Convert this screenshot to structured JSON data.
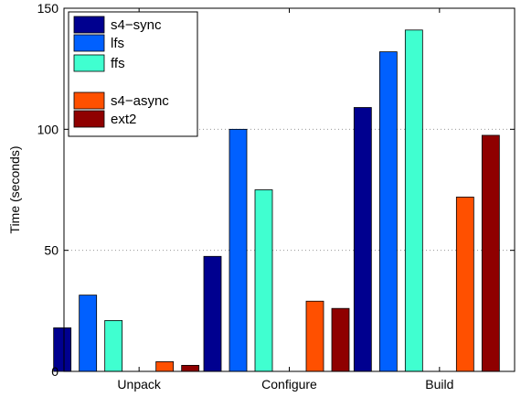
{
  "chart_data": {
    "type": "bar",
    "categories": [
      "Unpack",
      "Configure",
      "Build"
    ],
    "series": [
      {
        "name": "s4−sync",
        "color": "#00008f",
        "values": [
          18,
          47.5,
          109
        ]
      },
      {
        "name": "lfs",
        "color": "#0060ff",
        "values": [
          31.5,
          100,
          132
        ]
      },
      {
        "name": "ffs",
        "color": "#40ffd0",
        "values": [
          21,
          75,
          141
        ]
      },
      {
        "name": "s4−async",
        "color": "#ff5000",
        "values": [
          4,
          29,
          72
        ]
      },
      {
        "name": "ext2",
        "color": "#8f0000",
        "values": [
          2.5,
          26,
          97.5
        ]
      }
    ],
    "legend_groups": [
      [
        0,
        1,
        2
      ],
      [
        3,
        4
      ]
    ],
    "xlabel": "",
    "ylabel": "Time (seconds)",
    "ylim": [
      0,
      150
    ],
    "yticks": [
      0,
      50,
      100,
      150
    ],
    "grid": "horizontal-dotted",
    "legend_position": "top-left"
  }
}
